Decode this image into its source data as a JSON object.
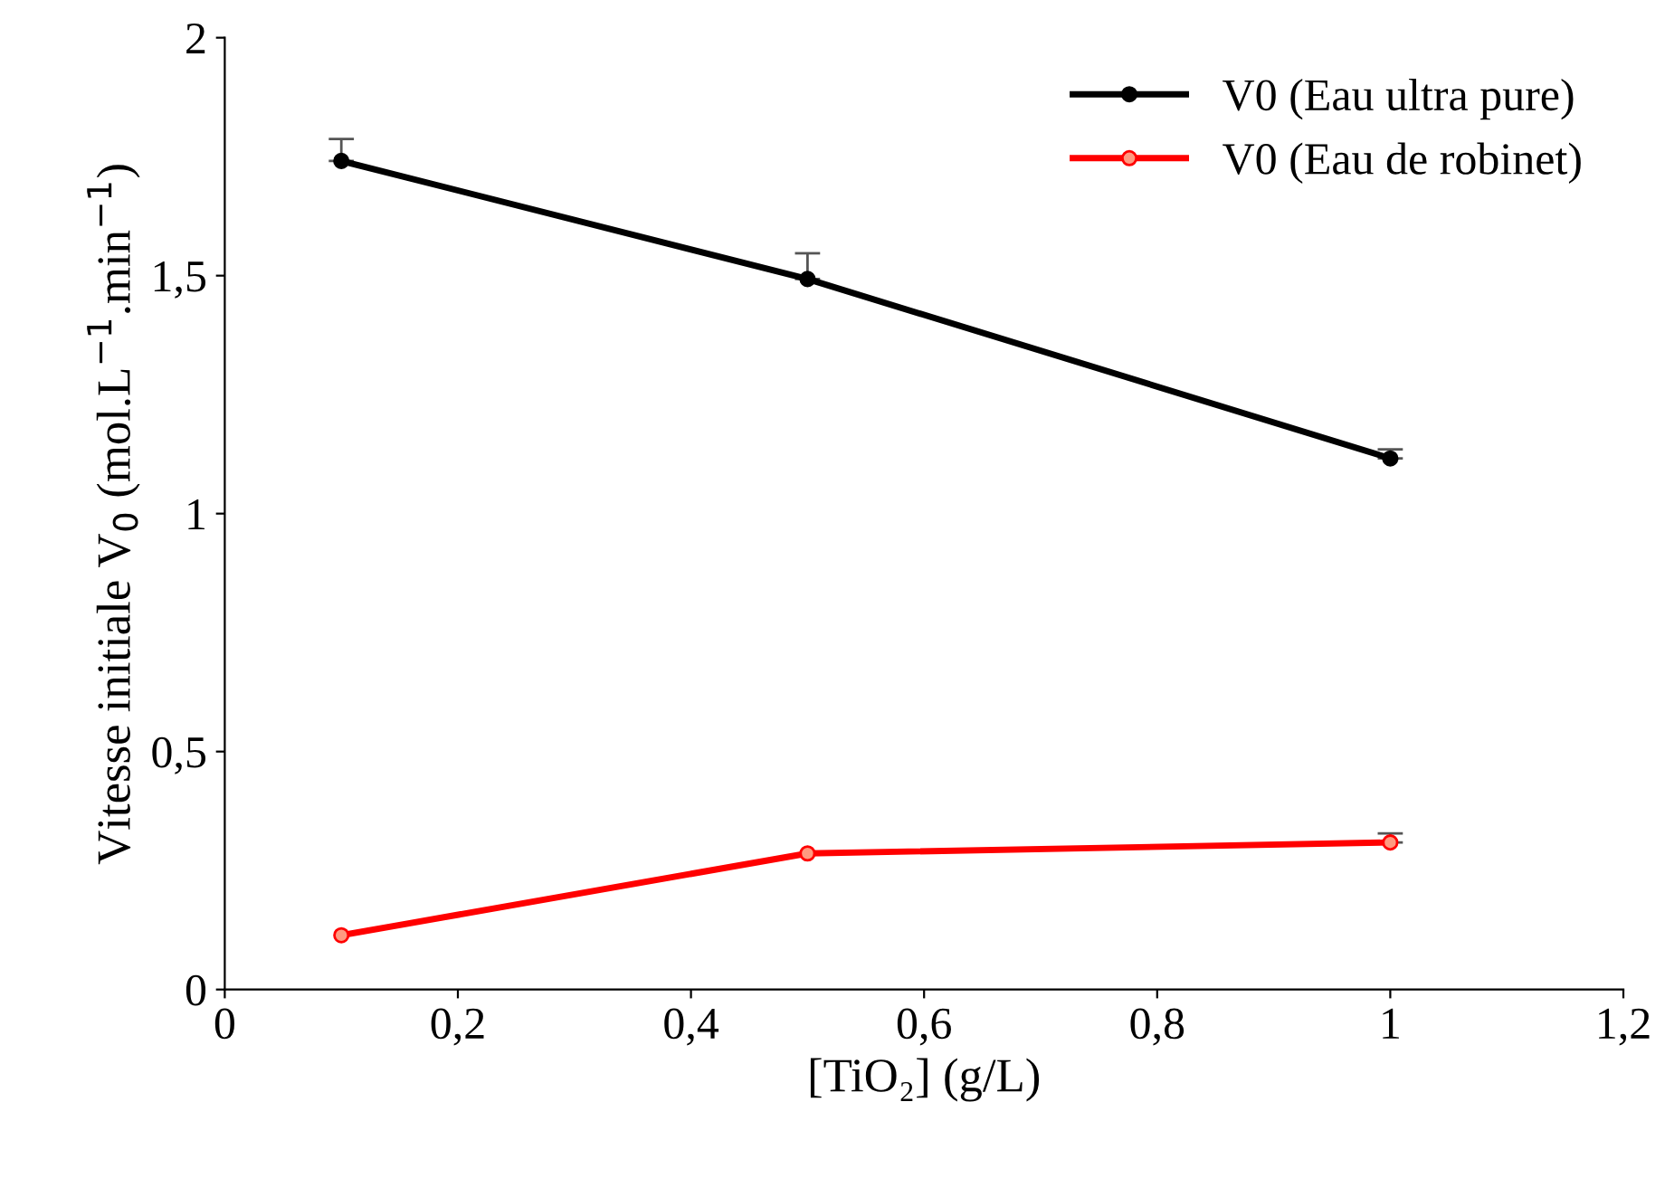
{
  "chart_data": {
    "type": "line",
    "xlabel": "[TiO₂] (g/L)",
    "ylabel": "Vitesse initiale V$_{0}$ (mol.L$^{−1}$.min$^{−1}$)",
    "x": [
      0.1,
      0.5,
      1
    ],
    "series": [
      {
        "name": "V0 (Eau ultra pure)",
        "color": "#000000",
        "values": [
          1.741,
          1.493,
          1.116
        ],
        "errors": [
          [
            1.741,
            1.787
          ],
          [
            1.493,
            1.547
          ],
          [
            1.116,
            1.135
          ]
        ]
      },
      {
        "name": "V0 (Eau de robinet)",
        "color": "#ff0000",
        "values": [
          0.114,
          0.286,
          0.309
        ],
        "errors": [
          null,
          null,
          [
            0.309,
            0.328
          ]
        ]
      }
    ],
    "xlim": [
      0,
      1.2
    ],
    "ylim": [
      0,
      2
    ],
    "xticks": [
      0,
      {
        "value": 0.2,
        "label": "0,2"
      },
      {
        "value": 0.4,
        "label": "0,4"
      },
      {
        "value": 0.6,
        "label": "0,6"
      },
      {
        "value": 0.8,
        "label": "0,8"
      },
      1,
      {
        "value": 1.2,
        "label": "1,2"
      }
    ],
    "yticks": [
      0,
      {
        "value": 0.5,
        "label": "0,5"
      },
      1,
      {
        "value": 1.5,
        "label": "1,5"
      },
      2
    ],
    "grid": false,
    "legend": "top right",
    "marker": "circle",
    "line_style": "solid"
  }
}
